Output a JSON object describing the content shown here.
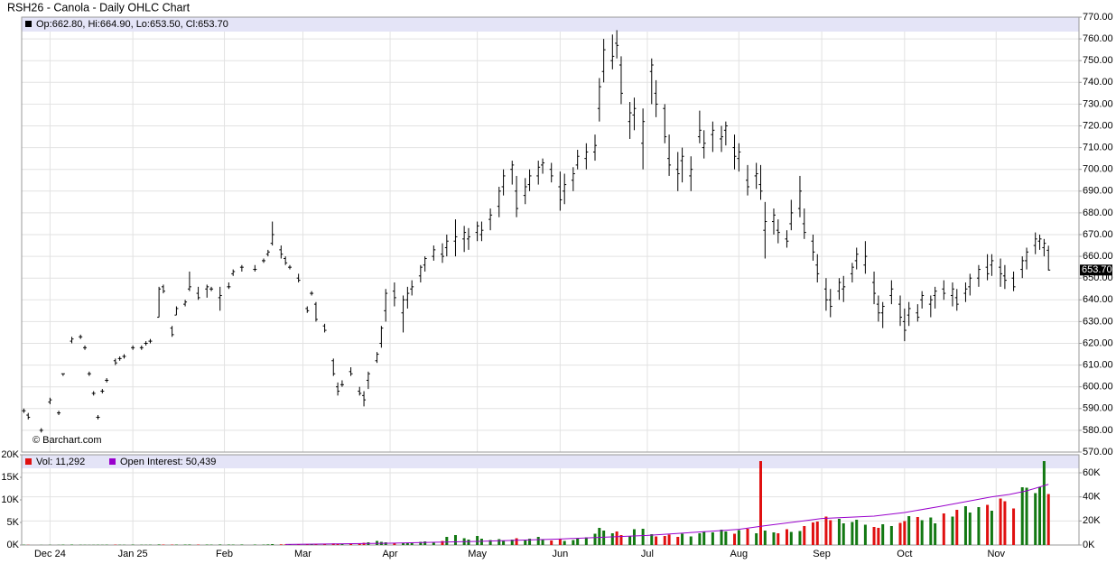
{
  "chart_data": {
    "type": "ohlc",
    "title": "RSH26 - Canola - Daily OHLC Chart",
    "ohlc_label": "Op:662.80, Hi:664.90, Lo:653.50, Cl:653.70",
    "watermark": "© Barchart.com",
    "last_label": "653.70",
    "volume_label": "Vol: 11,292",
    "oi_label": "Open Interest: 50,439",
    "x": [
      0,
      1,
      4,
      6,
      8,
      9,
      11,
      13,
      14,
      15,
      16,
      17,
      18,
      19,
      21,
      22,
      23,
      25,
      27,
      28,
      29,
      31,
      32,
      34,
      35,
      37,
      38,
      40,
      42,
      43,
      45,
      47,
      48,
      50,
      53,
      55,
      56,
      57,
      59,
      60,
      61,
      63,
      65,
      66,
      67,
      69,
      71,
      72,
      73,
      75,
      77,
      78,
      79,
      81,
      82,
      83,
      85,
      87,
      88,
      89,
      91,
      92,
      94,
      96,
      97,
      99,
      101,
      102,
      104,
      105,
      107,
      109,
      110,
      112,
      113,
      115,
      116,
      118,
      119,
      121,
      123,
      124,
      126,
      127,
      129,
      131,
      132,
      133,
      135,
      136,
      137,
      139,
      140,
      142,
      144,
      145,
      147,
      148,
      150,
      151,
      153,
      155,
      156,
      158,
      160,
      161,
      163,
      164,
      166,
      168,
      169,
      170,
      172,
      173,
      175,
      176,
      178,
      179,
      181,
      182,
      184,
      185,
      187,
      188,
      190,
      191,
      193,
      195,
      196,
      197,
      199,
      201,
      202,
      203,
      205,
      206,
      208,
      209,
      211,
      213,
      214,
      216,
      217,
      219,
      221,
      222,
      224,
      225,
      227,
      229,
      230,
      232,
      233,
      234,
      235
    ],
    "open": [
      589,
      587,
      580,
      593,
      588,
      606,
      621,
      623,
      618,
      606,
      597,
      586,
      598,
      603,
      612,
      613,
      614,
      618,
      618,
      620,
      621,
      632,
      646,
      627,
      633,
      638,
      645,
      643,
      645,
      645,
      641,
      646,
      652,
      655,
      654,
      658,
      661,
      666,
      663,
      659,
      655,
      650,
      636,
      643,
      638,
      628,
      612,
      600,
      601,
      607,
      598,
      596,
      603,
      612,
      620,
      635,
      644,
      634,
      640,
      645,
      651,
      656,
      660,
      661,
      664,
      667,
      668,
      668,
      671,
      670,
      677,
      683,
      692,
      700,
      690,
      688,
      693,
      697,
      702,
      700,
      692,
      690,
      695,
      702,
      705,
      708,
      728,
      745,
      750,
      758,
      748,
      722,
      725,
      712,
      745,
      735,
      728,
      705,
      700,
      704,
      697,
      715,
      710,
      716,
      714,
      718,
      710,
      705,
      695,
      697,
      693,
      672,
      676,
      672,
      668,
      675,
      682,
      675,
      667,
      656,
      645,
      640,
      644,
      645,
      652,
      658,
      656,
      648,
      638,
      634,
      642,
      638,
      630,
      633,
      634,
      640,
      638,
      642,
      645,
      642,
      641,
      643,
      646,
      650,
      655,
      656,
      655,
      651,
      650,
      654,
      658,
      665,
      667,
      664,
      662.8
    ],
    "high": [
      590,
      588,
      581,
      595,
      589,
      606,
      623,
      624,
      619,
      607,
      598,
      587,
      599,
      604,
      613,
      614,
      615,
      619,
      619,
      621,
      622,
      646,
      647,
      628,
      637,
      640,
      653,
      646,
      647,
      646,
      646,
      648,
      654,
      656,
      656,
      659,
      663,
      676,
      665,
      660,
      656,
      652,
      637,
      644,
      639,
      629,
      613,
      602,
      603,
      609,
      600,
      598,
      607,
      616,
      628,
      645,
      648,
      642,
      646,
      649,
      656,
      660,
      665,
      666,
      670,
      677,
      674,
      673,
      676,
      676,
      682,
      692,
      700,
      704,
      697,
      696,
      700,
      704,
      705,
      703,
      699,
      698,
      701,
      709,
      712,
      716,
      742,
      760,
      762,
      764,
      752,
      731,
      733,
      728,
      751,
      741,
      730,
      716,
      708,
      710,
      706,
      727,
      718,
      722,
      720,
      722,
      716,
      712,
      702,
      703,
      702,
      685,
      682,
      677,
      672,
      686,
      697,
      682,
      670,
      661,
      650,
      645,
      650,
      651,
      657,
      664,
      667,
      653,
      642,
      639,
      649,
      642,
      636,
      639,
      638,
      644,
      642,
      646,
      649,
      648,
      645,
      648,
      652,
      656,
      661,
      661,
      659,
      656,
      653,
      660,
      664,
      671,
      670,
      668,
      664.9
    ],
    "low": [
      588,
      585,
      579,
      592,
      587,
      605,
      620,
      622,
      617,
      605,
      596,
      585,
      597,
      602,
      610,
      612,
      613,
      617,
      617,
      619,
      620,
      632,
      643,
      623,
      633,
      637,
      644,
      640,
      641,
      644,
      635,
      645,
      651,
      653,
      653,
      657,
      660,
      665,
      659,
      656,
      654,
      648,
      634,
      642,
      630,
      625,
      605,
      596,
      600,
      605,
      596,
      591,
      599,
      611,
      618,
      630,
      637,
      625,
      636,
      642,
      648,
      653,
      658,
      657,
      660,
      660,
      662,
      663,
      667,
      667,
      672,
      678,
      688,
      693,
      678,
      684,
      690,
      693,
      698,
      694,
      681,
      684,
      690,
      700,
      700,
      704,
      722,
      740,
      746,
      751,
      730,
      714,
      718,
      700,
      730,
      724,
      712,
      697,
      690,
      694,
      690,
      712,
      705,
      708,
      708,
      711,
      700,
      699,
      688,
      691,
      686,
      659,
      670,
      666,
      664,
      672,
      678,
      668,
      658,
      648,
      635,
      632,
      640,
      639,
      648,
      654,
      652,
      638,
      630,
      627,
      638,
      628,
      621,
      628,
      630,
      636,
      632,
      636,
      640,
      637,
      635,
      639,
      642,
      646,
      649,
      651,
      646,
      645,
      644,
      650,
      654,
      661,
      663,
      660,
      653.5
    ],
    "close": [
      589,
      586,
      580,
      594,
      588,
      606,
      622,
      623,
      618,
      606,
      597,
      586,
      598,
      603,
      611,
      613,
      614,
      618,
      618,
      620,
      621,
      645,
      644,
      624,
      636,
      639,
      646,
      641,
      646,
      645,
      642,
      646,
      653,
      655,
      654,
      658,
      662,
      670,
      661,
      657,
      655,
      649,
      635,
      643,
      631,
      626,
      606,
      598,
      601,
      606,
      597,
      594,
      606,
      615,
      627,
      643,
      641,
      640,
      643,
      646,
      655,
      659,
      663,
      660,
      667,
      669,
      671,
      669,
      674,
      672,
      679,
      690,
      697,
      702,
      682,
      692,
      697,
      701,
      703,
      697,
      686,
      693,
      698,
      706,
      708,
      711,
      738,
      755,
      752,
      757,
      735,
      726,
      728,
      722,
      748,
      730,
      715,
      702,
      698,
      706,
      700,
      718,
      712,
      718,
      715,
      720,
      706,
      708,
      692,
      698,
      690,
      676,
      679,
      671,
      667,
      680,
      690,
      671,
      662,
      652,
      640,
      637,
      648,
      646,
      655,
      661,
      660,
      643,
      634,
      637,
      645,
      632,
      626,
      636,
      632,
      642,
      640,
      644,
      643,
      645,
      638,
      645,
      650,
      654,
      652,
      658,
      652,
      649,
      646,
      658,
      662,
      668,
      668,
      666,
      653.7
    ],
    "volume": [
      60,
      40,
      30,
      50,
      40,
      80,
      100,
      60,
      50,
      40,
      50,
      60,
      50,
      70,
      80,
      60,
      50,
      90,
      60,
      50,
      70,
      120,
      100,
      80,
      90,
      100,
      110,
      90,
      100,
      80,
      120,
      100,
      90,
      110,
      100,
      90,
      130,
      200,
      150,
      120,
      110,
      130,
      150,
      160,
      140,
      200,
      350,
      300,
      250,
      400,
      300,
      500,
      600,
      900,
      700,
      600,
      500,
      400,
      500,
      600,
      700,
      800,
      500,
      900,
      1800,
      2200,
      1500,
      1200,
      2000,
      1400,
      1100,
      1300,
      1000,
      1200,
      1500,
      1000,
      1400,
      1800,
      1200,
      1000,
      1300,
      900,
      1100,
      1500,
      1700,
      2500,
      3800,
      3200,
      2600,
      3000,
      2200,
      2000,
      3500,
      3600,
      2400,
      1900,
      2000,
      2300,
      1800,
      2500,
      1900,
      2600,
      3000,
      2800,
      3400,
      3000,
      2500,
      3300,
      3600,
      2600,
      18600,
      3200,
      2800,
      2600,
      3500,
      2900,
      3100,
      4200,
      5000,
      5200,
      6300,
      5500,
      5800,
      4800,
      5100,
      5600,
      4500,
      4000,
      3800,
      4600,
      4200,
      4900,
      5300,
      6400,
      6200,
      5500,
      6100,
      4800,
      7000,
      6300,
      7800,
      8600,
      7200,
      8400,
      8900,
      7600,
      10300,
      9700,
      8100,
      12800,
      12700,
      11500,
      12800,
      18600,
      11292
    ],
    "open_interest": {
      "x": [
        60,
        84,
        104,
        123,
        143,
        160,
        164,
        170,
        183,
        195,
        202,
        210,
        216,
        222,
        226,
        230,
        235
      ],
      "values": [
        500,
        1500,
        3000,
        5000,
        8000,
        12000,
        13000,
        16000,
        22000,
        24000,
        27000,
        32000,
        36000,
        40000,
        42000,
        45000,
        50439
      ],
      "color": "#9900cc"
    },
    "up_color": "#127812",
    "down_color": "#e01010",
    "bar_color": "#000000",
    "volume_legend_color": "#e01010",
    "xlim": [
      -0.5,
      242
    ],
    "xticks": [
      {
        "value": 6,
        "label": "Dec 24"
      },
      {
        "value": 25,
        "label": "Jan 25"
      },
      {
        "value": 46,
        "label": "Feb"
      },
      {
        "value": 64,
        "label": "Mar"
      },
      {
        "value": 84,
        "label": "Apr"
      },
      {
        "value": 104,
        "label": "May"
      },
      {
        "value": 123,
        "label": "Jun"
      },
      {
        "value": 143,
        "label": "Jul"
      },
      {
        "value": 164,
        "label": "Aug"
      },
      {
        "value": 183,
        "label": "Sep"
      },
      {
        "value": 202,
        "label": "Oct"
      },
      {
        "value": 223,
        "label": "Nov"
      }
    ],
    "ylim": [
      570,
      770
    ],
    "yticks": [
      {
        "value": 570,
        "label": "570.00"
      },
      {
        "value": 580,
        "label": "580.00"
      },
      {
        "value": 590,
        "label": "590.00"
      },
      {
        "value": 600,
        "label": "600.00"
      },
      {
        "value": 610,
        "label": "610.00"
      },
      {
        "value": 620,
        "label": "620.00"
      },
      {
        "value": 630,
        "label": "630.00"
      },
      {
        "value": 640,
        "label": "640.00"
      },
      {
        "value": 650,
        "label": "650.00"
      },
      {
        "value": 660,
        "label": "660.00"
      },
      {
        "value": 670,
        "label": "670.00"
      },
      {
        "value": 680,
        "label": "680.00"
      },
      {
        "value": 690,
        "label": "690.00"
      },
      {
        "value": 700,
        "label": "700.00"
      },
      {
        "value": 710,
        "label": "710.00"
      },
      {
        "value": 720,
        "label": "720.00"
      },
      {
        "value": 730,
        "label": "730.00"
      },
      {
        "value": 740,
        "label": "740.00"
      },
      {
        "value": 750,
        "label": "750.00"
      },
      {
        "value": 760,
        "label": "760.00"
      },
      {
        "value": 770,
        "label": "770.00"
      }
    ],
    "volume_ylim": [
      0,
      20000
    ],
    "volume_ticks": [
      {
        "value": 0,
        "label": "0K"
      },
      {
        "value": 5000,
        "label": "5K"
      },
      {
        "value": 10000,
        "label": "10K"
      },
      {
        "value": 15000,
        "label": "15K"
      },
      {
        "value": 20000,
        "label": "20K"
      }
    ],
    "oi_ylim": [
      0,
      75000
    ],
    "oi_ticks": [
      {
        "value": 0,
        "label": "0K"
      },
      {
        "value": 20000,
        "label": "20K"
      },
      {
        "value": 40000,
        "label": "40K"
      },
      {
        "value": 60000,
        "label": "60K"
      }
    ],
    "grid": true
  }
}
